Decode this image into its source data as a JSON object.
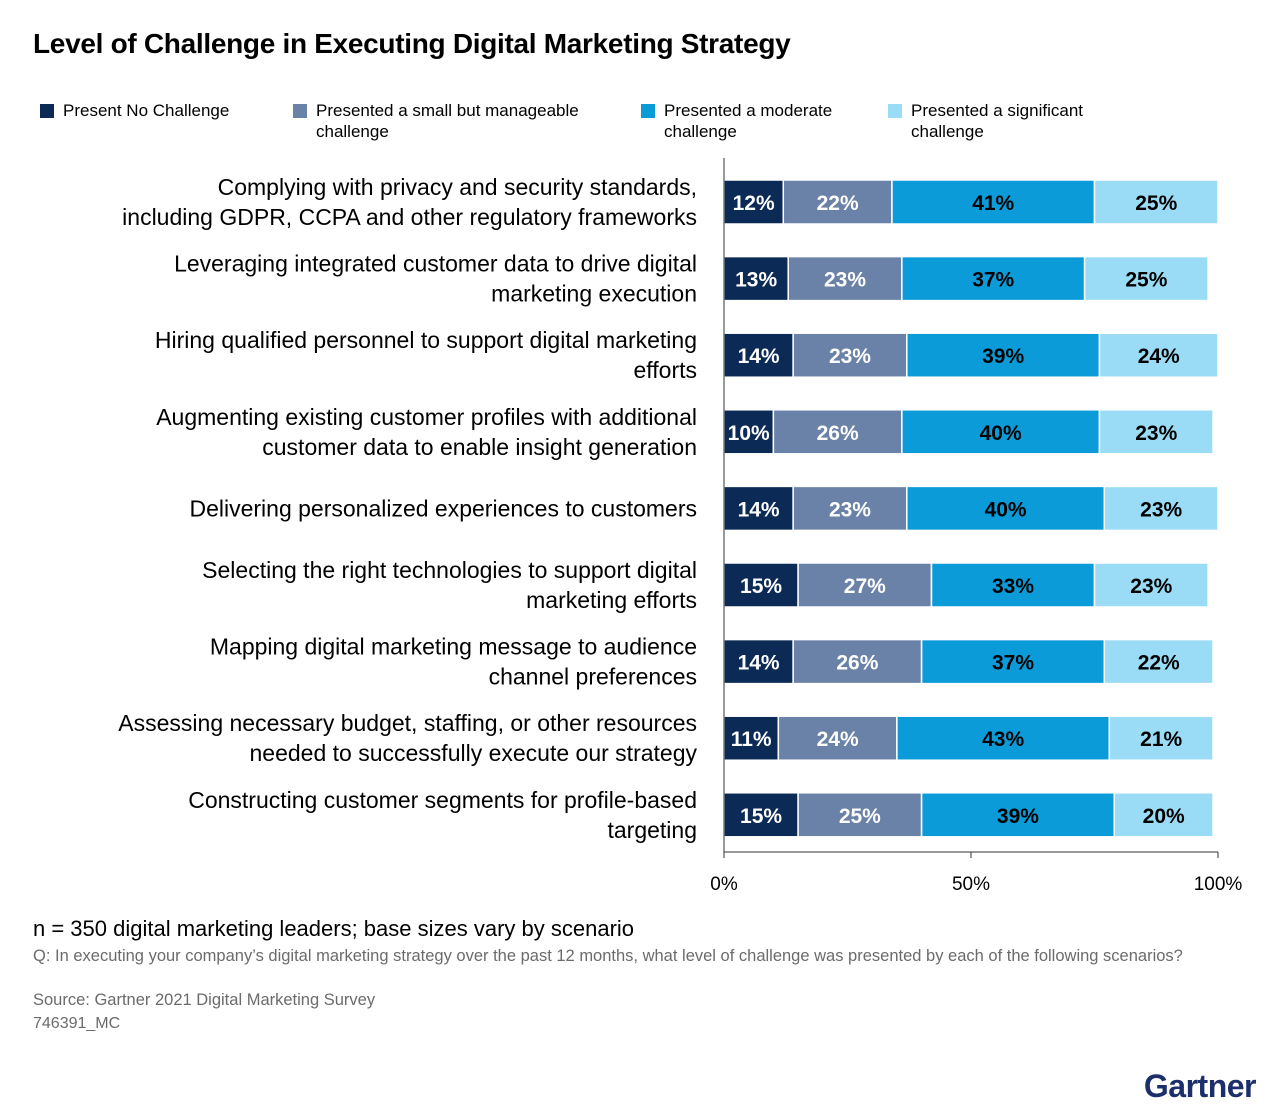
{
  "title": "Level of Challenge in Executing Digital Marketing Strategy",
  "colors": {
    "no_challenge": "#0b2a55",
    "small": "#6b82a8",
    "moderate": "#0a9bd8",
    "significant": "#9adcf5"
  },
  "chart_data": {
    "type": "bar",
    "orientation": "horizontal",
    "stacked": true,
    "xlim": [
      0,
      100
    ],
    "xticks": [
      "0%",
      "50%",
      "100%"
    ],
    "legend_position": "top",
    "grid": false,
    "categories": [
      "Complying with privacy and security standards,\nincluding GDPR, CCPA and other regulatory frameworks",
      "Leveraging integrated customer data to drive digital\nmarketing execution",
      "Hiring qualified personnel to support digital marketing\nefforts",
      "Augmenting existing customer profiles with additional\ncustomer data to enable insight generation",
      "Delivering personalized experiences to customers",
      "Selecting the right technologies to support digital\nmarketing efforts",
      "Mapping digital marketing message to audience\nchannel preferences",
      "Assessing necessary budget, staffing, or other resources\nneeded to successfully execute our strategy",
      "Constructing customer segments for profile-based\ntargeting"
    ],
    "series": [
      {
        "name": "Present No Challenge",
        "color": "#0b2a55",
        "label_color": "#ffffff",
        "values": [
          12,
          13,
          14,
          10,
          14,
          15,
          14,
          11,
          15
        ]
      },
      {
        "name": "Presented a small but manageable\nchallenge",
        "color": "#6b82a8",
        "label_color": "#ffffff",
        "values": [
          22,
          23,
          23,
          26,
          23,
          27,
          26,
          24,
          25
        ]
      },
      {
        "name": "Presented a moderate\nchallenge",
        "color": "#0a9bd8",
        "label_color": "#000000",
        "values": [
          41,
          37,
          39,
          40,
          40,
          33,
          37,
          43,
          39
        ]
      },
      {
        "name": "Presented a significant\nchallenge",
        "color": "#9adcf5",
        "label_color": "#000000",
        "values": [
          25,
          25,
          24,
          23,
          23,
          23,
          22,
          21,
          20
        ]
      }
    ],
    "value_labels": [
      [
        "12%",
        "22%",
        "41%",
        "25%"
      ],
      [
        "13%",
        "23%",
        "37%",
        "25%"
      ],
      [
        "14%",
        "23%",
        "39%",
        "24%"
      ],
      [
        "10%",
        "26%",
        "40%",
        "23%"
      ],
      [
        "14%",
        "23%",
        "40%",
        "23%"
      ],
      [
        "15%",
        "27%",
        "33%",
        "23%"
      ],
      [
        "14%",
        "26%",
        "37%",
        "22%"
      ],
      [
        "11%",
        "24%",
        "43%",
        "21%"
      ],
      [
        "15%",
        "25%",
        "39%",
        "20%"
      ]
    ]
  },
  "footer": {
    "n": "n = 350 digital marketing leaders; base sizes vary by scenario",
    "question": "Q: In executing your company’s digital marketing strategy over the past 12 months, what level of challenge was presented by each of the following scenarios?",
    "source": "Source: Gartner 2021 Digital Marketing Survey",
    "id": "746391_MC"
  },
  "brand": "Gartner"
}
